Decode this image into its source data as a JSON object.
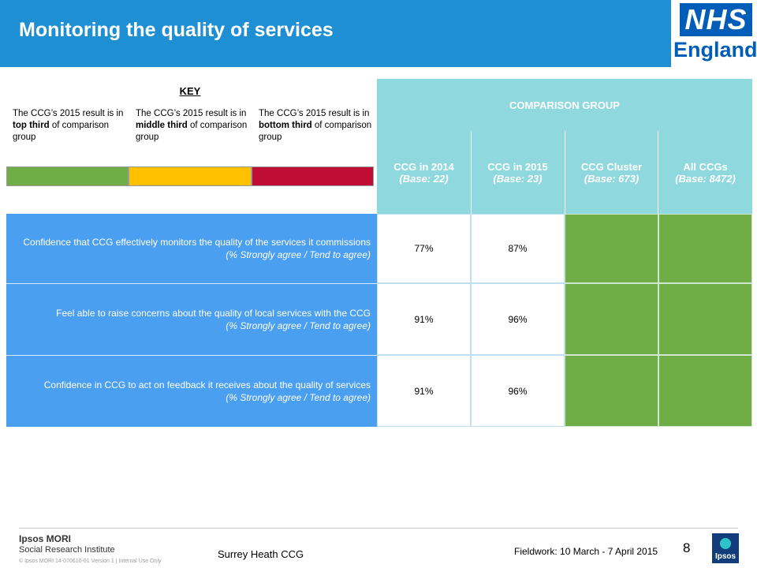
{
  "header": {
    "title": "Monitoring the quality of services"
  },
  "logo": {
    "nhs": "NHS",
    "region": "England"
  },
  "key": {
    "title": "KEY",
    "items": [
      {
        "text_pre": "The CCG’s 2015 result is in ",
        "emph": "top third",
        "text_post": " of comparison group",
        "color": "#70ad47"
      },
      {
        "text_pre": "The CCG’s 2015 result is in ",
        "emph": "middle third",
        "text_post": " of comparison group",
        "color": "#ffc000"
      },
      {
        "text_pre": "The CCG’s 2015 result is in ",
        "emph": "bottom third",
        "text_post": " of comparison group",
        "color": "#c00d35"
      }
    ]
  },
  "table": {
    "comparison_header": "COMPARISON GROUP",
    "columns": [
      {
        "title": "CCG in 2014",
        "base": "(Base: 22)"
      },
      {
        "title": "CCG in 2015",
        "base": "(Base: 23)"
      },
      {
        "title": "CCG Cluster",
        "base": "(Base: 673)"
      },
      {
        "title": "All CCGs",
        "base": "(Base: 8472)"
      }
    ],
    "rows": [
      {
        "question": "Confidence that CCG effectively monitors the quality of the services it commissions",
        "sub": "(% Strongly agree / Tend to agree)",
        "v2014": "77%",
        "v2015": "87%",
        "cluster_rating": "top third",
        "all_rating": "top third"
      },
      {
        "question": "Feel able to raise concerns about the quality of local services with the CCG",
        "sub": "(% Strongly agree / Tend to agree)",
        "v2014": "91%",
        "v2015": "96%",
        "cluster_rating": "top third",
        "all_rating": "top third"
      },
      {
        "question": "Confidence in CCG to act on feedback it receives about the quality of services",
        "sub": "(% Strongly agree / Tend to agree)",
        "v2014": "91%",
        "v2015": "96%",
        "cluster_rating": "top third",
        "all_rating": "top third"
      }
    ]
  },
  "footer": {
    "brand": "Ipsos MORI",
    "brand_sub": "Social Research Institute",
    "copyright": "© Ipsos MORI   14-070610-01  Version 1 | Internal Use Only",
    "ccg": "Surrey Heath CCG",
    "fieldwork": "Fieldwork: 10 March - 7 April 2015",
    "page": "8",
    "badge": "Ipsos"
  },
  "colors": {
    "header_blue": "#1f8fd4",
    "label_blue": "#4b9ff0",
    "comparison_teal": "#8fd8de",
    "top_green": "#70ad47"
  }
}
